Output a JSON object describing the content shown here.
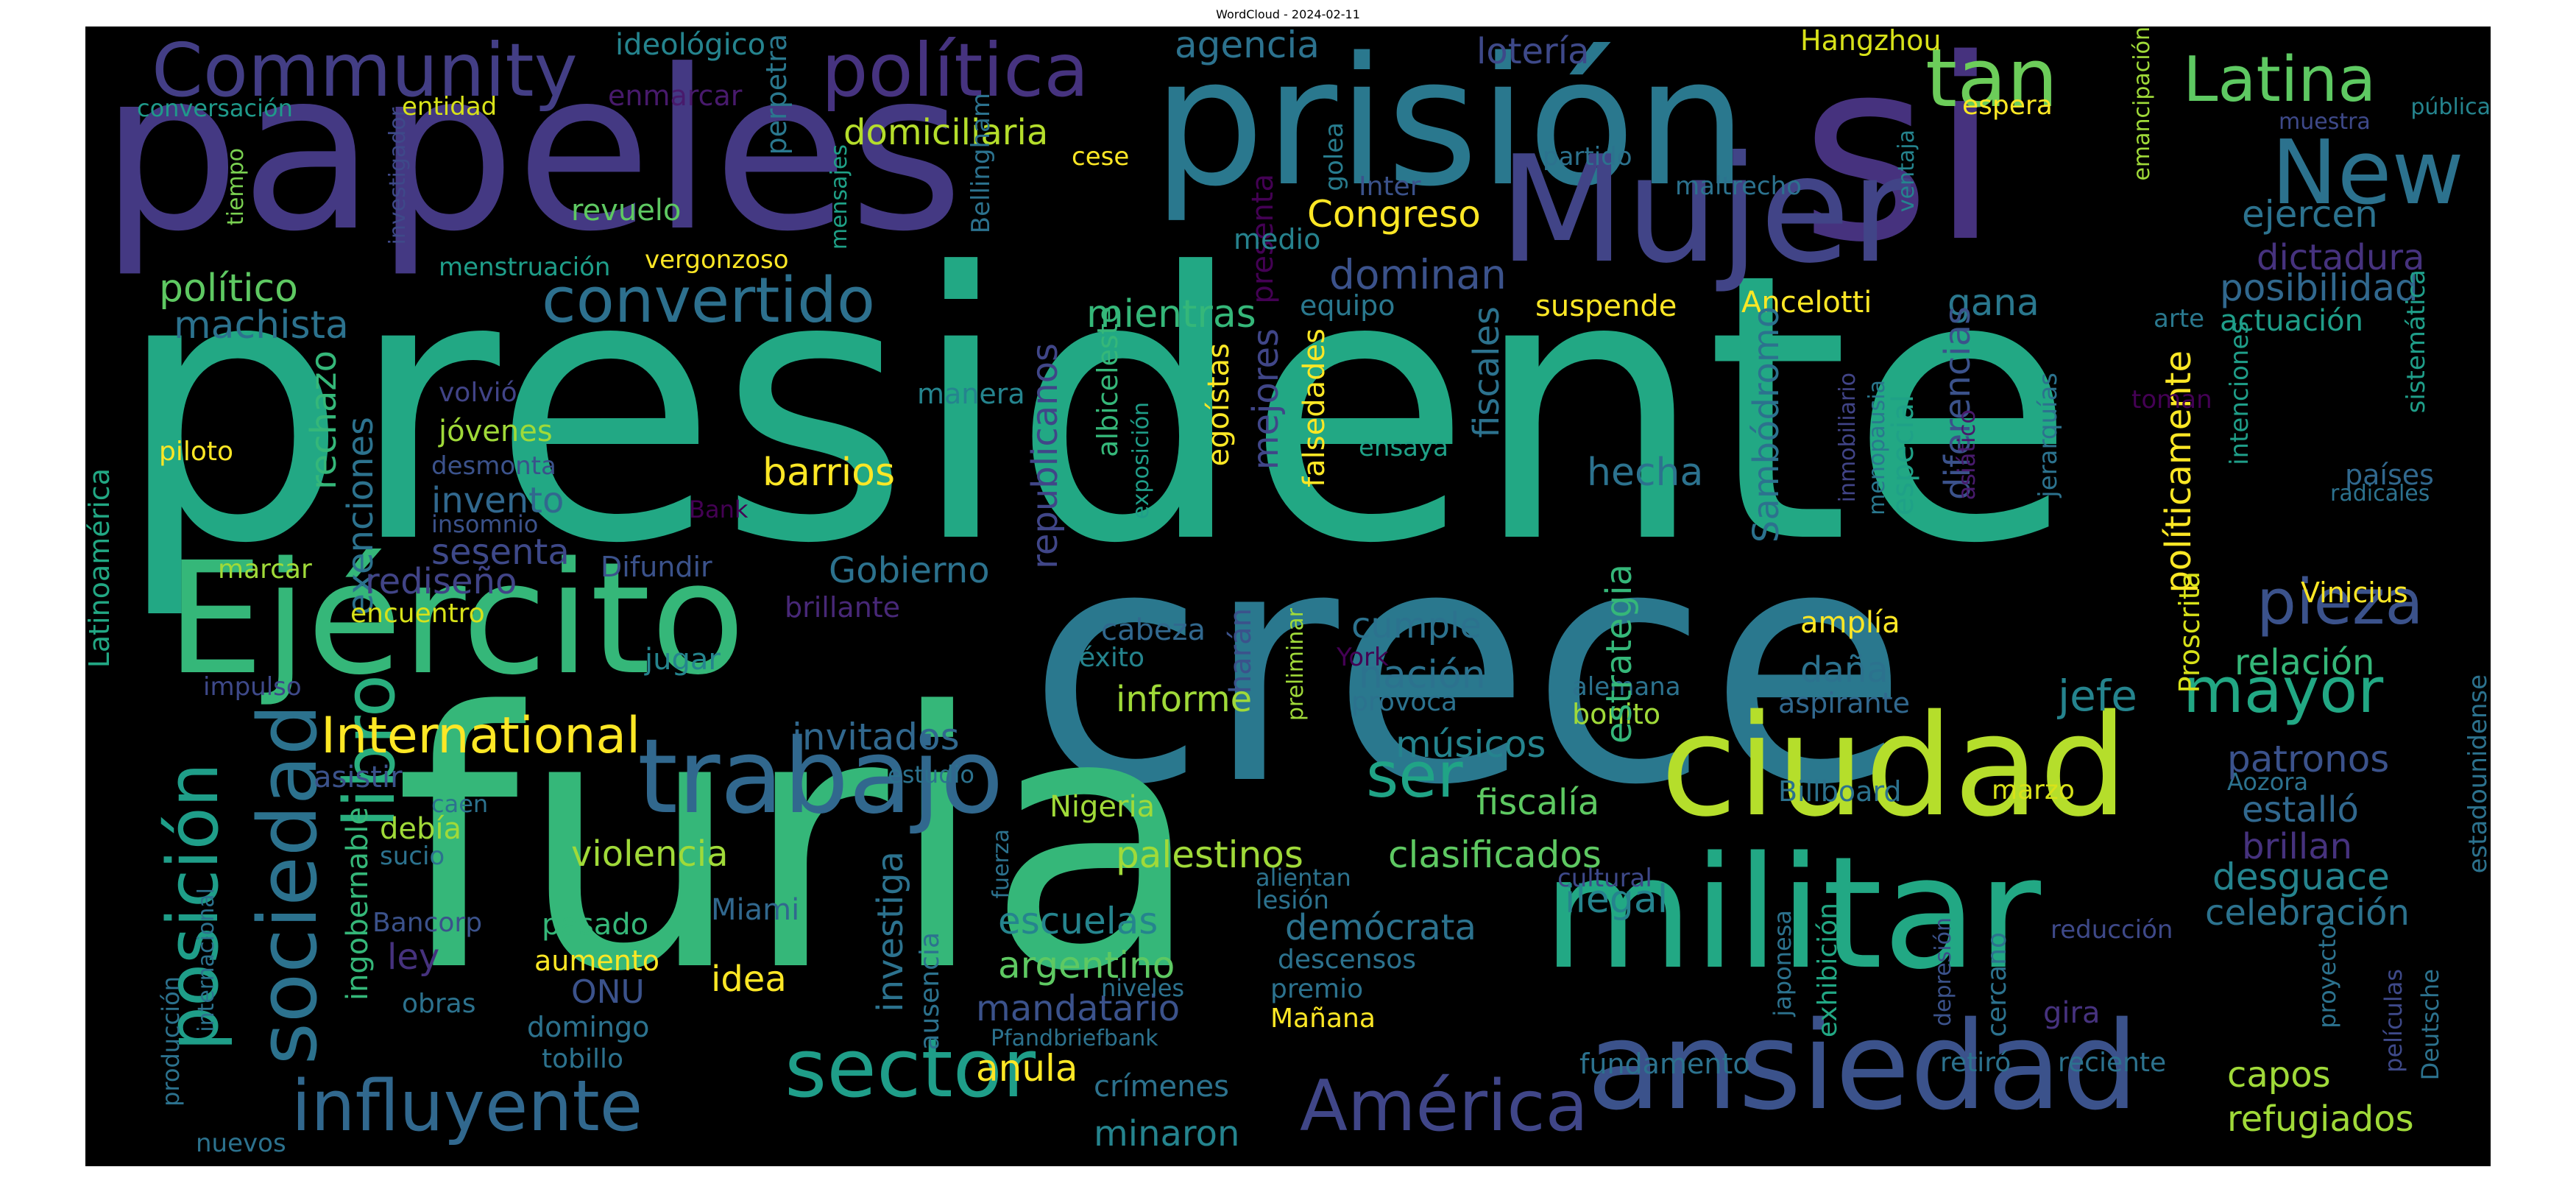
{
  "title": "WordCloud - 2024-02-11",
  "words": [
    {
      "text": "presidente",
      "color": "#22a884"
    },
    {
      "text": "crece",
      "color": "#2a788e"
    },
    {
      "text": "furia",
      "color": "#35b779"
    },
    {
      "text": "papeles",
      "color": "#443983"
    },
    {
      "text": "prisión",
      "color": "#2a788e"
    },
    {
      "text": "si",
      "color": "#46327e"
    },
    {
      "text": "Mujer",
      "color": "#414487"
    },
    {
      "text": "Ejército",
      "color": "#35b779"
    },
    {
      "text": "militar",
      "color": "#22a884"
    },
    {
      "text": "ciudad",
      "color": "#b5de2b"
    },
    {
      "text": "ansiedad",
      "color": "#3b528b"
    },
    {
      "text": "trabajo",
      "color": "#31688e"
    },
    {
      "text": "sector",
      "color": "#1f9e89"
    },
    {
      "text": "América",
      "color": "#404688"
    },
    {
      "text": "influyente",
      "color": "#31688e"
    },
    {
      "text": "sociedad",
      "color": "#2c728e"
    },
    {
      "text": "posición",
      "color": "#1f9e89"
    },
    {
      "text": "libro",
      "color": "#29af7f"
    },
    {
      "text": "Community",
      "color": "#433e85"
    },
    {
      "text": "política",
      "color": "#46337f"
    },
    {
      "text": "tan",
      "color": "#6ccd5a"
    },
    {
      "text": "Latina",
      "color": "#5ec962"
    },
    {
      "text": "New",
      "color": "#2c728e"
    },
    {
      "text": "convertido",
      "color": "#2d708e"
    },
    {
      "text": "International",
      "color": "#fde725"
    },
    {
      "text": "pieza",
      "color": "#3b528b"
    },
    {
      "text": "mayor",
      "color": "#22a884"
    },
    {
      "text": "ser",
      "color": "#20a486"
    },
    {
      "text": "barrios",
      "color": "#fde725"
    },
    {
      "text": "domiciliaria",
      "color": "#b5de2b"
    },
    {
      "text": "agencia",
      "color": "#2c728e"
    },
    {
      "text": "lotería",
      "color": "#3e4989"
    },
    {
      "text": "Hangzhou",
      "color": "#d8e219"
    },
    {
      "text": "emancipación",
      "color": "#a0da39"
    },
    {
      "text": "espera",
      "color": "#fde725"
    },
    {
      "text": "muestra",
      "color": "#3e4989"
    },
    {
      "text": "pública",
      "color": "#25848e"
    },
    {
      "text": "ideológico",
      "color": "#25848e"
    },
    {
      "text": "conversación",
      "color": "#1f9a8a"
    },
    {
      "text": "entidad",
      "color": "#d8e219"
    },
    {
      "text": "enmarcar",
      "color": "#481a6c"
    },
    {
      "text": "tiempo",
      "color": "#7ad151"
    },
    {
      "text": "investigador",
      "color": "#3e4989"
    },
    {
      "text": "perpetra",
      "color": "#2a788e"
    },
    {
      "text": "mensajes",
      "color": "#1fa187"
    },
    {
      "text": "Bellingham",
      "color": "#2c728e"
    },
    {
      "text": "cese",
      "color": "#fde725"
    },
    {
      "text": "golea",
      "color": "#287c8e"
    },
    {
      "text": "presenta",
      "color": "#440154"
    },
    {
      "text": "Inter",
      "color": "#3b528b"
    },
    {
      "text": "partido",
      "color": "#2c728e"
    },
    {
      "text": "maltrecho",
      "color": "#2c728e"
    },
    {
      "text": "ventaja",
      "color": "#25848e"
    },
    {
      "text": "revuelo",
      "color": "#5ec962"
    },
    {
      "text": "Congreso",
      "color": "#fde725"
    },
    {
      "text": "ejercen",
      "color": "#2c728e"
    },
    {
      "text": "dictadura",
      "color": "#46327e"
    },
    {
      "text": "medio",
      "color": "#26828e"
    },
    {
      "text": "menstruación",
      "color": "#1f9e89"
    },
    {
      "text": "vergonzoso",
      "color": "#fde725"
    },
    {
      "text": "político",
      "color": "#5ec962"
    },
    {
      "text": "machista",
      "color": "#2c728e"
    },
    {
      "text": "dominan",
      "color": "#3b528b"
    },
    {
      "text": "mientras",
      "color": "#35b779"
    },
    {
      "text": "equipo",
      "color": "#2a788e"
    },
    {
      "text": "suspende",
      "color": "#fde725"
    },
    {
      "text": "Ancelotti",
      "color": "#fde725"
    },
    {
      "text": "gana",
      "color": "#2a788e"
    },
    {
      "text": "posibilidad",
      "color": "#31688e"
    },
    {
      "text": "actuación",
      "color": "#1f9e89"
    },
    {
      "text": "arte",
      "color": "#2a788e"
    },
    {
      "text": "sistemática",
      "color": "#1f9e89"
    },
    {
      "text": "rechazo",
      "color": "#35b779"
    },
    {
      "text": "exenciones",
      "color": "#2c728e"
    },
    {
      "text": "volvió",
      "color": "#414487"
    },
    {
      "text": "jóvenes",
      "color": "#a0da39"
    },
    {
      "text": "desmonta",
      "color": "#3b528b"
    },
    {
      "text": "piloto",
      "color": "#fde725"
    },
    {
      "text": "invento",
      "color": "#31688e"
    },
    {
      "text": "insomnio",
      "color": "#3b528b"
    },
    {
      "text": "sesenta",
      "color": "#3e4989"
    },
    {
      "text": "Bank",
      "color": "#440154"
    },
    {
      "text": "manera",
      "color": "#25848e"
    },
    {
      "text": "republicanos",
      "color": "#404688"
    },
    {
      "text": "albiceleste",
      "color": "#35b779"
    },
    {
      "text": "exposición",
      "color": "#1f9e89"
    },
    {
      "text": "egoístas",
      "color": "#fde725"
    },
    {
      "text": "mejores",
      "color": "#404688"
    },
    {
      "text": "falsedades",
      "color": "#fde725"
    },
    {
      "text": "fiscales",
      "color": "#2c728e"
    },
    {
      "text": "ensaya",
      "color": "#1fa187"
    },
    {
      "text": "hecha",
      "color": "#2c728e"
    },
    {
      "text": "Sambódromo",
      "color": "#2c728e"
    },
    {
      "text": "inmobiliario",
      "color": "#414487"
    },
    {
      "text": "diferencias",
      "color": "#3b528b"
    },
    {
      "text": "menopausia",
      "color": "#2a788e"
    },
    {
      "text": "especial",
      "color": "#1fa187"
    },
    {
      "text": "asiático",
      "color": "#481a6c"
    },
    {
      "text": "jerarquías",
      "color": "#2c728e"
    },
    {
      "text": "políticamente",
      "color": "#fde725"
    },
    {
      "text": "intenciones",
      "color": "#1f9e89"
    },
    {
      "text": "toman",
      "color": "#440154"
    },
    {
      "text": "países",
      "color": "#31688e"
    },
    {
      "text": "radicales",
      "color": "#2c728e"
    },
    {
      "text": "Latinoamérica",
      "color": "#22a884"
    },
    {
      "text": "marcar",
      "color": "#a0da39"
    },
    {
      "text": "rediseño",
      "color": "#414487"
    },
    {
      "text": "encuentro",
      "color": "#d8e219"
    },
    {
      "text": "Difundir",
      "color": "#3b528b"
    },
    {
      "text": "brillante",
      "color": "#482878"
    },
    {
      "text": "Gobierno",
      "color": "#2c728e"
    },
    {
      "text": "impulso",
      "color": "#3e4989"
    },
    {
      "text": "jugar",
      "color": "#25848e"
    },
    {
      "text": "cabeza",
      "color": "#31688e"
    },
    {
      "text": "éxito",
      "color": "#25848e"
    },
    {
      "text": "harán",
      "color": "#3b528b"
    },
    {
      "text": "preliminar",
      "color": "#a0da39"
    },
    {
      "text": "cumple",
      "color": "#2c728e"
    },
    {
      "text": "York",
      "color": "#440154"
    },
    {
      "text": "nación",
      "color": "#2c728e"
    },
    {
      "text": "informe",
      "color": "#a0da39"
    },
    {
      "text": "provoca",
      "color": "#2c728e"
    },
    {
      "text": "alemana",
      "color": "#2c728e"
    },
    {
      "text": "bonito",
      "color": "#a0da39"
    },
    {
      "text": "amplía",
      "color": "#fde725"
    },
    {
      "text": "daña",
      "color": "#2c728e"
    },
    {
      "text": "aspirante",
      "color": "#31688e"
    },
    {
      "text": "jefe",
      "color": "#25848e"
    },
    {
      "text": "estrategia",
      "color": "#35b779"
    },
    {
      "text": "Proscrita",
      "color": "#d8e219"
    },
    {
      "text": "relación",
      "color": "#35b779"
    },
    {
      "text": "Vinicius",
      "color": "#fde725"
    },
    {
      "text": "estadounidense",
      "color": "#2c728e"
    },
    {
      "text": "invitados",
      "color": "#31688e"
    },
    {
      "text": "estudio",
      "color": "#2c728e"
    },
    {
      "text": "músicos",
      "color": "#25848e"
    },
    {
      "text": "fiscalía",
      "color": "#5ec962"
    },
    {
      "text": "Billboard",
      "color": "#2c728e"
    },
    {
      "text": "marzo",
      "color": "#d8e219"
    },
    {
      "text": "Aozora",
      "color": "#2c728e"
    },
    {
      "text": "patronos",
      "color": "#3b528b"
    },
    {
      "text": "estalló",
      "color": "#31688e"
    },
    {
      "text": "brillan",
      "color": "#46327e"
    },
    {
      "text": "asistir",
      "color": "#3b528b"
    },
    {
      "text": "caen",
      "color": "#2c728e"
    },
    {
      "text": "debía",
      "color": "#a0da39"
    },
    {
      "text": "sucio",
      "color": "#2c728e"
    },
    {
      "text": "ingobernable",
      "color": "#35b779"
    },
    {
      "text": "violencia",
      "color": "#a0da39"
    },
    {
      "text": "Nigeria",
      "color": "#a0da39"
    },
    {
      "text": "fuerza",
      "color": "#2c728e"
    },
    {
      "text": "palestinos",
      "color": "#a0da39"
    },
    {
      "text": "clasificados",
      "color": "#5ec962"
    },
    {
      "text": "investiga",
      "color": "#2c728e"
    },
    {
      "text": "alientan",
      "color": "#2c728e"
    },
    {
      "text": "lesión",
      "color": "#2c728e"
    },
    {
      "text": "cultural",
      "color": "#3e4989"
    },
    {
      "text": "ilegal",
      "color": "#25848e"
    },
    {
      "text": "desguace",
      "color": "#25848e"
    },
    {
      "text": "celebración",
      "color": "#2c728e"
    },
    {
      "text": "internacional",
      "color": "#2c728e"
    },
    {
      "text": "Bancorp",
      "color": "#3b528b"
    },
    {
      "text": "pasado",
      "color": "#35b779"
    },
    {
      "text": "ley",
      "color": "#46327e"
    },
    {
      "text": "aumento",
      "color": "#fde725"
    },
    {
      "text": "ONU",
      "color": "#3b528b"
    },
    {
      "text": "idea",
      "color": "#fde725"
    },
    {
      "text": "Miami",
      "color": "#31688e"
    },
    {
      "text": "escuelas",
      "color": "#25848e"
    },
    {
      "text": "argentino",
      "color": "#5ec962"
    },
    {
      "text": "demócrata",
      "color": "#2c728e"
    },
    {
      "text": "descensos",
      "color": "#2c728e"
    },
    {
      "text": "premio",
      "color": "#2c728e"
    },
    {
      "text": "japonesa",
      "color": "#2c728e"
    },
    {
      "text": "exhibición",
      "color": "#22a884"
    },
    {
      "text": "depresión",
      "color": "#3b528b"
    },
    {
      "text": "cercano",
      "color": "#2c728e"
    },
    {
      "text": "reducción",
      "color": "#3e4989"
    },
    {
      "text": "producción",
      "color": "#2c728e"
    },
    {
      "text": "obras",
      "color": "#2c728e"
    },
    {
      "text": "domingo",
      "color": "#2c728e"
    },
    {
      "text": "tobillo",
      "color": "#2c728e"
    },
    {
      "text": "ausencia",
      "color": "#2c728e"
    },
    {
      "text": "mandatario",
      "color": "#3b528b"
    },
    {
      "text": "niveles",
      "color": "#2c728e"
    },
    {
      "text": "Pfandbriefbank",
      "color": "#2c728e"
    },
    {
      "text": "Mañana",
      "color": "#fde725"
    },
    {
      "text": "anula",
      "color": "#fde725"
    },
    {
      "text": "fundamento",
      "color": "#2c728e"
    },
    {
      "text": "gira",
      "color": "#46327e"
    },
    {
      "text": "proyecto",
      "color": "#2c728e"
    },
    {
      "text": "películas",
      "color": "#3e4989"
    },
    {
      "text": "Deutsche",
      "color": "#2c728e"
    },
    {
      "text": "capos",
      "color": "#a0da39"
    },
    {
      "text": "retiró",
      "color": "#2c728e"
    },
    {
      "text": "reciente",
      "color": "#2c728e"
    },
    {
      "text": "crímenes",
      "color": "#2c728e"
    },
    {
      "text": "minaron",
      "color": "#25848e"
    },
    {
      "text": "refugiados",
      "color": "#a0da39"
    },
    {
      "text": "nuevos",
      "color": "#2c728e"
    }
  ]
}
